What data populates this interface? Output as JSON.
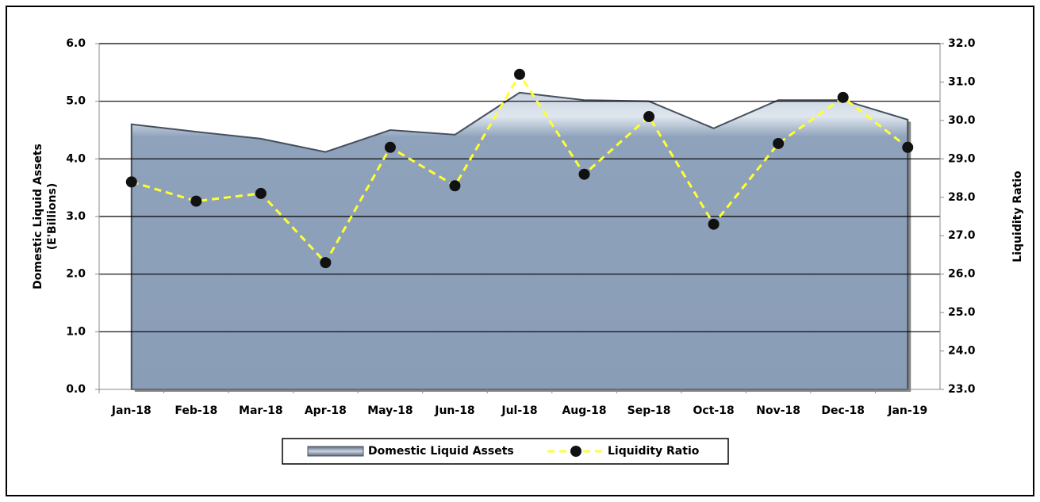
{
  "chart_data": {
    "type": "area_line",
    "categories": [
      "Jan-18",
      "Feb-18",
      "Mar-18",
      "Apr-18",
      "May-18",
      "Jun-18",
      "Jul-18",
      "Aug-18",
      "Sep-18",
      "Oct-18",
      "Nov-18",
      "Dec-18",
      "Jan-19"
    ],
    "ylabel": [
      "Domestic Liquid Assets",
      "(E'Billions)"
    ],
    "y2label": "Liquidity Ratio",
    "series": [
      {
        "name": "Domestic Liquid Assets",
        "type": "area",
        "color": "#8fa2bb",
        "values": [
          4.6,
          4.47,
          4.35,
          4.12,
          4.5,
          4.42,
          5.15,
          5.02,
          5.0,
          4.53,
          5.02,
          5.02,
          4.68
        ]
      },
      {
        "name": "Liquidity Ratio",
        "type": "line",
        "axis": "y2",
        "color": "#ffff33",
        "marker_color": "#111111",
        "values": [
          28.4,
          27.9,
          28.1,
          26.3,
          29.3,
          28.3,
          31.2,
          28.6,
          30.1,
          27.3,
          29.4,
          30.6,
          29.3
        ]
      }
    ],
    "ylim": [
      0,
      6
    ],
    "yticks": [
      {
        "value": 0,
        "label": "0.0"
      },
      {
        "value": 1,
        "label": "1.0"
      },
      {
        "value": 2,
        "label": "2.0"
      },
      {
        "value": 3,
        "label": "3.0"
      },
      {
        "value": 4,
        "label": "4.0"
      },
      {
        "value": 5,
        "label": "5.0"
      },
      {
        "value": 6,
        "label": "6.0"
      }
    ],
    "y2lim": [
      23,
      32
    ],
    "y2ticks": [
      {
        "value": 23,
        "label": "23.0"
      },
      {
        "value": 24,
        "label": "24.0"
      },
      {
        "value": 25,
        "label": "25.0"
      },
      {
        "value": 26,
        "label": "26.0"
      },
      {
        "value": 27,
        "label": "27.0"
      },
      {
        "value": 28,
        "label": "28.0"
      },
      {
        "value": 29,
        "label": "29.0"
      },
      {
        "value": 30,
        "label": "30.0"
      },
      {
        "value": 31,
        "label": "31.0"
      },
      {
        "value": 32,
        "label": "32.0"
      }
    ],
    "grid": true,
    "legend": "bottom"
  }
}
